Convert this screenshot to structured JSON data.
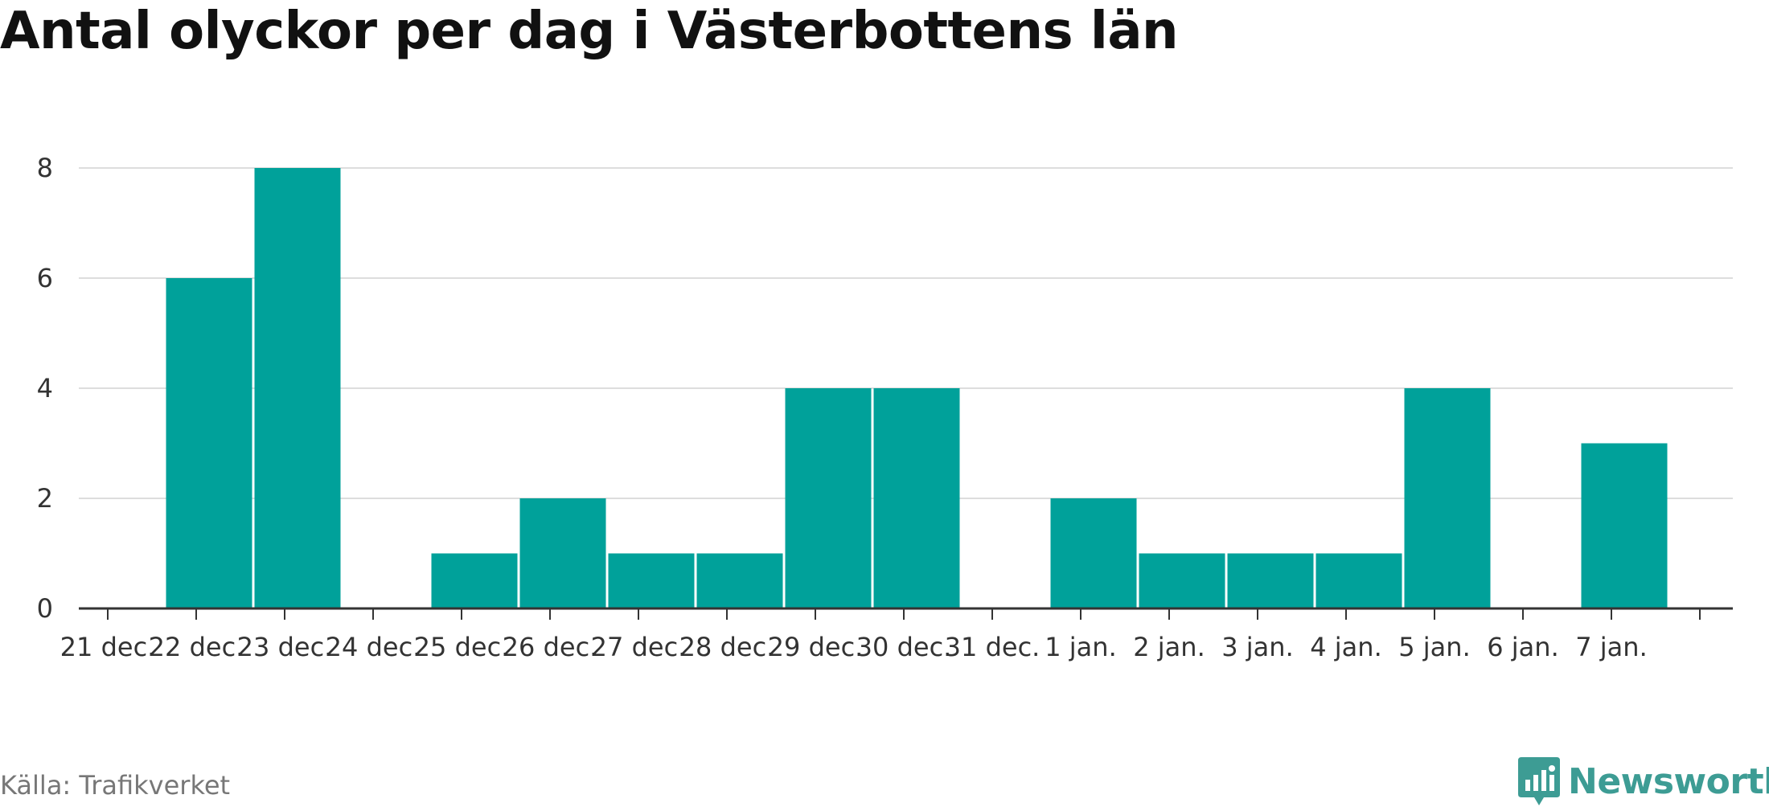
{
  "chart_data": {
    "type": "bar",
    "title": "Antal olyckor per dag i Västerbottens län",
    "xlabel": "",
    "ylabel": "",
    "categories": [
      "21 dec.",
      "22 dec.",
      "23 dec.",
      "24 dec.",
      "25 dec.",
      "26 dec.",
      "27 dec.",
      "28 dec.",
      "29 dec.",
      "30 dec.",
      "31 dec.",
      "1 jan.",
      "2 jan.",
      "3 jan.",
      "4 jan.",
      "5 jan.",
      "6 jan.",
      "7 jan."
    ],
    "values": [
      0,
      6,
      8,
      0,
      1,
      2,
      1,
      1,
      4,
      4,
      0,
      2,
      1,
      1,
      1,
      4,
      0,
      3
    ],
    "ylim": [
      0,
      9
    ],
    "yticks": [
      0,
      2,
      4,
      6,
      8
    ],
    "grid": true,
    "legend": "none"
  },
  "colors": {
    "bar": "#00a19a",
    "grid": "#dddddd",
    "axis": "#333333",
    "brand": "#3d9c94"
  },
  "footer": {
    "source": "Källa: Trafikverket",
    "brand": "Newsworthy",
    "brand_icon": "bar-chart-speech-bubble-icon"
  }
}
